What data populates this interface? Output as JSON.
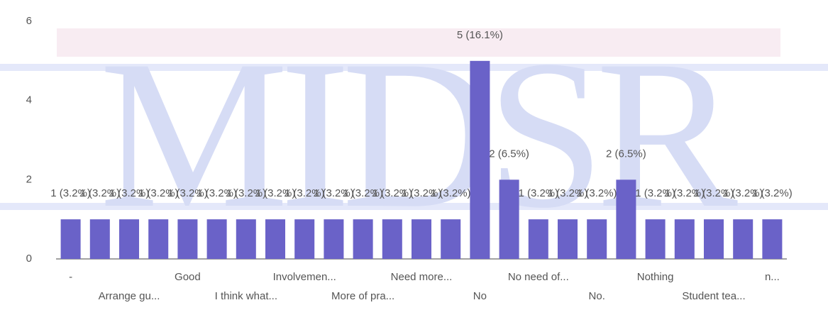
{
  "chart_data": {
    "type": "bar",
    "watermark": "MIDSR",
    "categories": [
      "-",
      null,
      "Arrange gu...",
      null,
      "Good",
      null,
      "I think what...",
      null,
      "Involvemen...",
      null,
      "More of pra...",
      null,
      "Need more...",
      null,
      "No",
      null,
      "No need of...",
      null,
      "No.",
      null,
      "Nothing",
      null,
      "Student tea...",
      null,
      "n..."
    ],
    "values": [
      1,
      1,
      1,
      1,
      1,
      1,
      1,
      1,
      1,
      1,
      1,
      1,
      1,
      1,
      5,
      2,
      1,
      1,
      1,
      2,
      1,
      1,
      1,
      1,
      1
    ],
    "value_labels": [
      "1 (3.2%)",
      "1 (3.2%)",
      "1 (3.2%)",
      "1 (3.2%)",
      "1 (3.2%)",
      "1 (3.2%)",
      "1 (3.2%)",
      "1 (3.2%)",
      "1 (3.2%)",
      "1 (3.2%)",
      "1 (3.2%)",
      "1 (3.2%)",
      "1 (3.2%)",
      "1 (3.2%)",
      "5 (16.1%)",
      "2 (6.5%)",
      "1 (3.2%)",
      "1 (3.2%)",
      "1 (3.2%)",
      "2 (6.5%)",
      "1 (3.2%)",
      "1 (3.2%)",
      "1 (3.2%)",
      "1 (3.2%)",
      "1 (3.2%)"
    ],
    "color": "#6a62c8",
    "ylim": [
      0,
      6
    ],
    "yticks": [
      0,
      2,
      4,
      6
    ],
    "grid": false
  }
}
